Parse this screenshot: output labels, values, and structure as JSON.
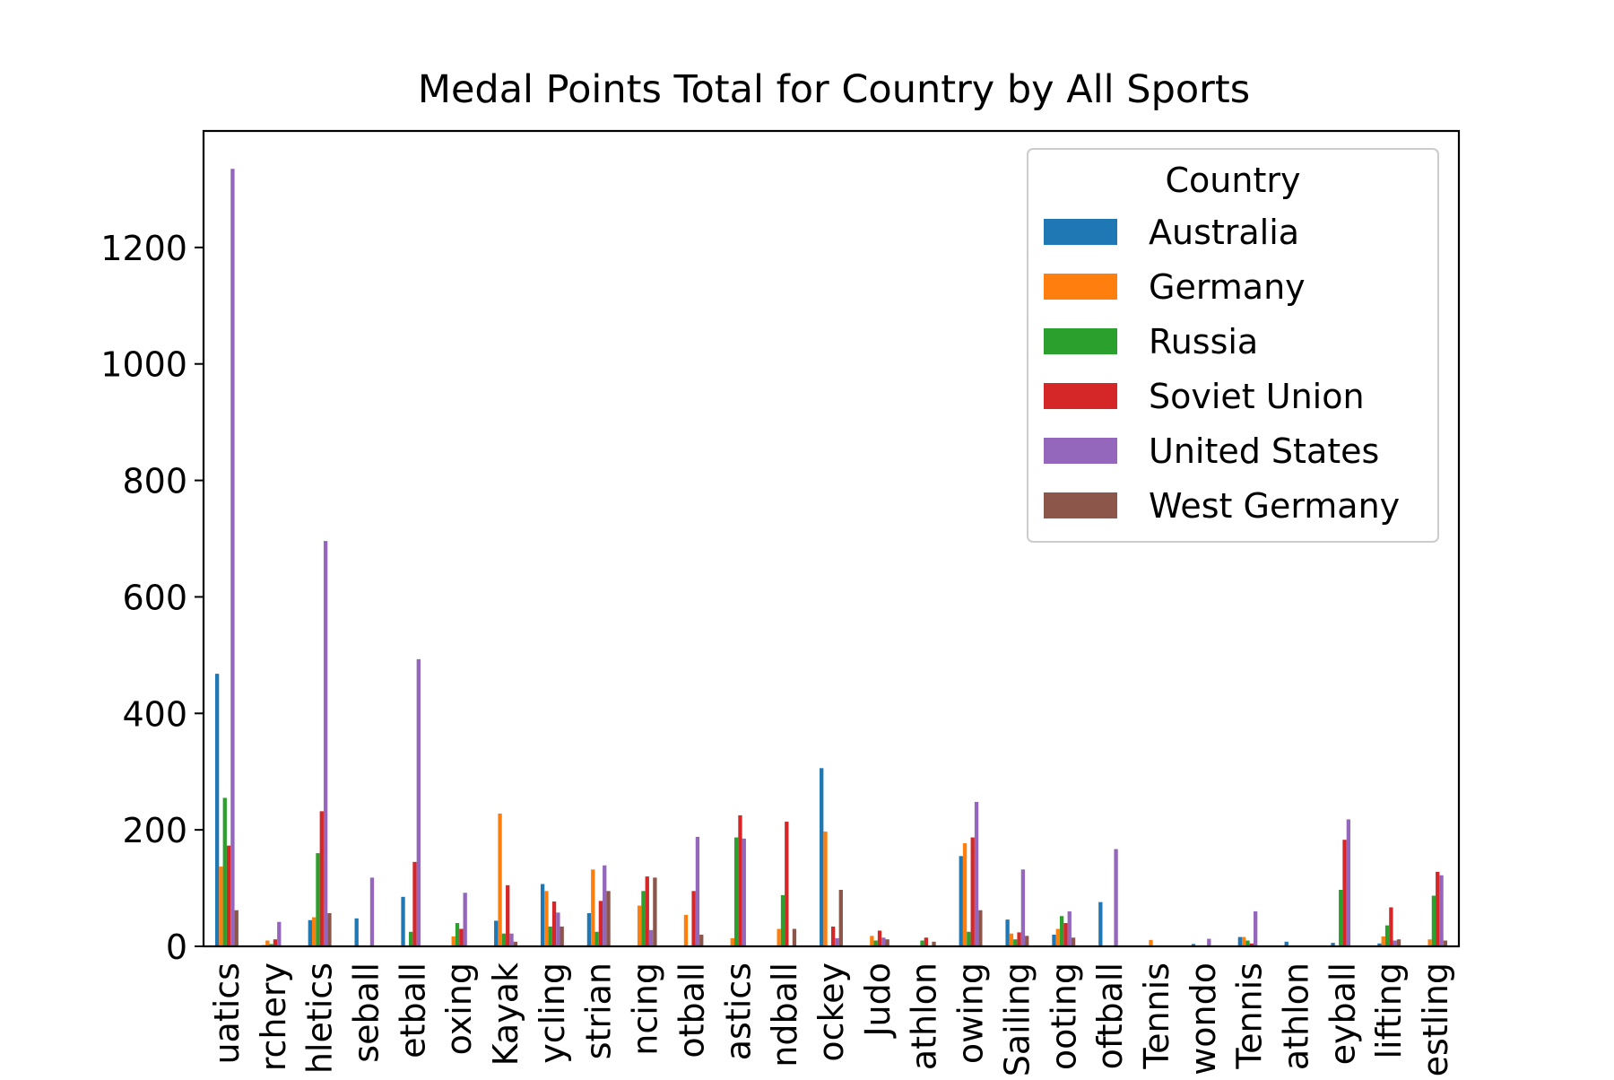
{
  "chart_data": {
    "type": "bar",
    "title": "Medal Points Total for Country by All Sports",
    "xlabel": "",
    "ylabel": "",
    "ylim": [
      0,
      1400
    ],
    "yticks": [
      0,
      200,
      400,
      600,
      800,
      1000,
      1200
    ],
    "grid": false,
    "legend": {
      "title": "Country",
      "position": "top-right"
    },
    "categories": [
      "uatics",
      "rchery",
      "hletics",
      "seball",
      "etball",
      "oxing",
      "Kayak",
      "ycling",
      "strian",
      "ncing",
      "otball",
      "astics",
      "ndball",
      "ockey",
      "Judo",
      "athlon",
      "owing",
      "Sailing",
      "ooting",
      "oftball",
      "Tennis",
      "wondo",
      "Tennis",
      "athlon",
      "eyball",
      "lifting",
      "estling"
    ],
    "series": [
      {
        "name": "Australia",
        "color": "#1f77b4",
        "values": [
          468,
          2,
          45,
          48,
          85,
          0,
          44,
          107,
          57,
          0,
          0,
          0,
          0,
          306,
          0,
          0,
          155,
          46,
          20,
          76,
          0,
          4,
          16,
          8,
          6,
          5,
          0
        ]
      },
      {
        "name": "Germany",
        "color": "#ff7f0e",
        "values": [
          137,
          10,
          50,
          0,
          0,
          17,
          228,
          95,
          132,
          70,
          54,
          14,
          30,
          197,
          18,
          0,
          177,
          22,
          30,
          0,
          11,
          0,
          16,
          0,
          0,
          17,
          12
        ]
      },
      {
        "name": "Russia",
        "color": "#2ca02c",
        "values": [
          255,
          4,
          160,
          0,
          25,
          40,
          22,
          34,
          25,
          95,
          0,
          187,
          88,
          0,
          10,
          10,
          25,
          12,
          52,
          0,
          0,
          0,
          10,
          0,
          97,
          36,
          87
        ]
      },
      {
        "name": "Soviet Union",
        "color": "#d62728",
        "values": [
          173,
          12,
          232,
          0,
          145,
          30,
          105,
          77,
          78,
          120,
          95,
          225,
          214,
          34,
          27,
          15,
          187,
          24,
          40,
          0,
          0,
          0,
          5,
          0,
          183,
          67,
          128
        ]
      },
      {
        "name": "United States",
        "color": "#9467bd",
        "values": [
          1335,
          42,
          696,
          118,
          493,
          92,
          22,
          58,
          139,
          28,
          188,
          185,
          0,
          14,
          15,
          0,
          248,
          132,
          60,
          167,
          0,
          13,
          60,
          0,
          218,
          10,
          122
        ]
      },
      {
        "name": "West Germany",
        "color": "#8c564b",
        "values": [
          62,
          0,
          57,
          0,
          0,
          0,
          8,
          34,
          95,
          118,
          20,
          0,
          30,
          97,
          12,
          8,
          62,
          18,
          15,
          0,
          0,
          0,
          0,
          0,
          0,
          12,
          10
        ]
      }
    ]
  }
}
